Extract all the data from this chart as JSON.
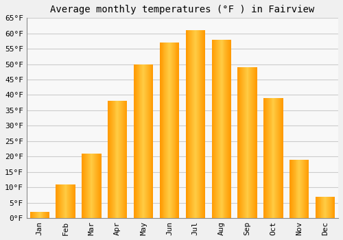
{
  "title": "Average monthly temperatures (°F ) in Fairview",
  "months": [
    "Jan",
    "Feb",
    "Mar",
    "Apr",
    "May",
    "Jun",
    "Jul",
    "Aug",
    "Sep",
    "Oct",
    "Nov",
    "Dec"
  ],
  "values": [
    2,
    11,
    21,
    38,
    50,
    57,
    61,
    58,
    49,
    39,
    19,
    7
  ],
  "bar_color_light": "#FFD060",
  "bar_color_mid": "#FFA500",
  "bar_color_dark": "#E08000",
  "background_color": "#F0F0F0",
  "plot_bg_color": "#F8F8F8",
  "grid_color": "#CCCCCC",
  "ylim": [
    0,
    65
  ],
  "yticks": [
    0,
    5,
    10,
    15,
    20,
    25,
    30,
    35,
    40,
    45,
    50,
    55,
    60,
    65
  ],
  "ytick_labels": [
    "0°F",
    "5°F",
    "10°F",
    "15°F",
    "20°F",
    "25°F",
    "30°F",
    "35°F",
    "40°F",
    "45°F",
    "50°F",
    "55°F",
    "60°F",
    "65°F"
  ],
  "title_fontsize": 10,
  "tick_fontsize": 8,
  "font_family": "monospace"
}
